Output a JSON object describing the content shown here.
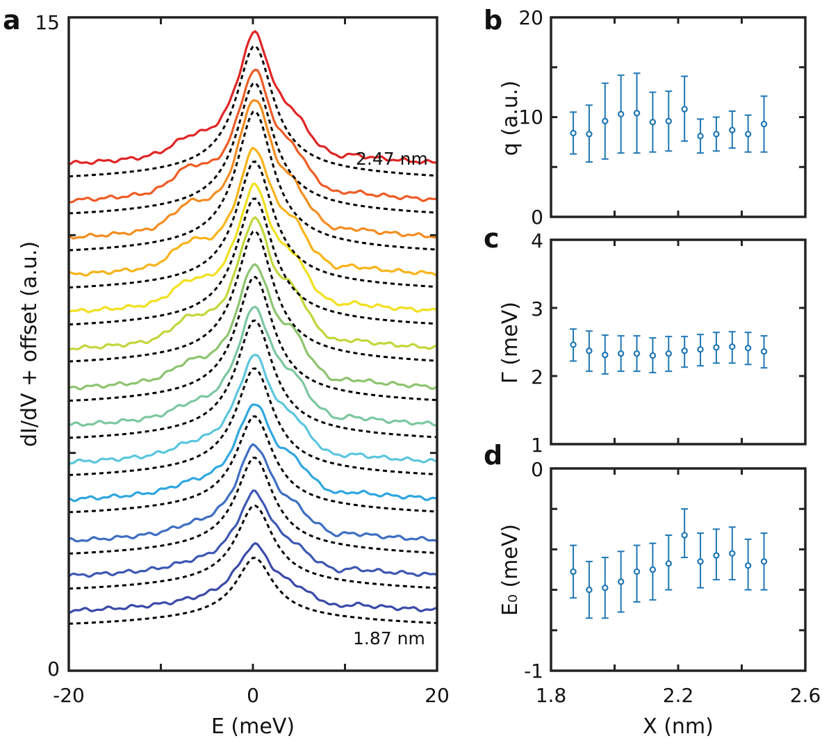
{
  "chart_data": [
    {
      "panel": "a",
      "type": "line",
      "xlabel": "E (meV)",
      "ylabel": "dI/dV + offset (a.u.)",
      "xlim": [
        -20,
        20
      ],
      "ylim": [
        0,
        15
      ],
      "x_ticks": [
        "-20",
        "0",
        "20"
      ],
      "y_ticks": [
        "0",
        "15"
      ],
      "annotations": [
        "2.47 nm",
        "1.87 nm"
      ],
      "fit_style": "black dashed",
      "series": [
        {
          "position_nm": 1.87,
          "color": "#3a4aa8",
          "offset": 1.3,
          "peak": 1.2,
          "bump": 0.02,
          "shoulder": 0.15
        },
        {
          "position_nm": 1.92,
          "color": "#3d57b3",
          "offset": 2.1,
          "peak": 1.6,
          "bump": 0.05,
          "shoulder": 0.2
        },
        {
          "position_nm": 1.97,
          "color": "#3d6ec2",
          "offset": 2.9,
          "peak": 1.9,
          "bump": 0.08,
          "shoulder": 0.25
        },
        {
          "position_nm": 2.02,
          "color": "#2fa6e0",
          "offset": 3.85,
          "peak": 1.9,
          "bump": 0.1,
          "shoulder": 0.35
        },
        {
          "position_nm": 2.07,
          "color": "#5bc6de",
          "offset": 4.7,
          "peak": 2.15,
          "bump": 0.12,
          "shoulder": 0.4
        },
        {
          "position_nm": 2.12,
          "color": "#7bc7a0",
          "offset": 5.55,
          "peak": 2.4,
          "bump": 0.15,
          "shoulder": 0.45
        },
        {
          "position_nm": 2.17,
          "color": "#8cc46e",
          "offset": 6.4,
          "peak": 2.55,
          "bump": 0.25,
          "shoulder": 0.55
        },
        {
          "position_nm": 2.22,
          "color": "#c2d63a",
          "offset": 7.3,
          "peak": 2.7,
          "bump": 0.35,
          "shoulder": 0.6
        },
        {
          "position_nm": 2.27,
          "color": "#f2e01e",
          "offset": 8.15,
          "peak": 2.6,
          "bump": 0.35,
          "shoulder": 0.55
        },
        {
          "position_nm": 2.32,
          "color": "#f8b318",
          "offset": 9.0,
          "peak": 2.6,
          "bump": 0.4,
          "shoulder": 0.5
        },
        {
          "position_nm": 2.37,
          "color": "#f48c20",
          "offset": 9.85,
          "peak": 2.9,
          "bump": 0.4,
          "shoulder": 0.45
        },
        {
          "position_nm": 2.42,
          "color": "#ee5b24",
          "offset": 10.7,
          "peak": 2.7,
          "bump": 0.4,
          "shoulder": 0.45
        },
        {
          "position_nm": 2.47,
          "color": "#e02424",
          "offset": 11.55,
          "peak": 2.7,
          "bump": 0.25,
          "shoulder": 0.4
        }
      ]
    },
    {
      "panel": "b",
      "type": "scatter",
      "xlabel": "",
      "ylabel": "q (a.u.)",
      "xlim": [
        1.8,
        2.6
      ],
      "ylim": [
        0,
        20
      ],
      "y_ticks": [
        "0",
        "10",
        "20"
      ],
      "x": [
        1.87,
        1.92,
        1.97,
        2.02,
        2.07,
        2.12,
        2.17,
        2.22,
        2.27,
        2.32,
        2.37,
        2.42,
        2.47
      ],
      "y": [
        8.4,
        8.3,
        9.6,
        10.3,
        10.4,
        9.5,
        9.6,
        10.8,
        8.1,
        8.3,
        8.7,
        8.3,
        9.3
      ],
      "yerr_low": [
        6.3,
        5.5,
        5.8,
        6.4,
        6.4,
        6.5,
        6.6,
        7.6,
        6.4,
        6.6,
        6.9,
        6.5,
        6.5
      ],
      "yerr_high": [
        10.5,
        11.2,
        13.4,
        14.2,
        14.4,
        12.5,
        12.6,
        14.1,
        9.8,
        10.0,
        10.6,
        10.2,
        12.1
      ]
    },
    {
      "panel": "c",
      "type": "scatter",
      "xlabel": "",
      "ylabel": "Γ (meV)",
      "xlim": [
        1.8,
        2.6
      ],
      "ylim": [
        1,
        4
      ],
      "y_ticks": [
        "1",
        "2",
        "3",
        "4"
      ],
      "x": [
        1.87,
        1.92,
        1.97,
        2.02,
        2.07,
        2.12,
        2.17,
        2.22,
        2.27,
        2.32,
        2.37,
        2.42,
        2.47
      ],
      "y": [
        2.46,
        2.37,
        2.31,
        2.33,
        2.33,
        2.3,
        2.33,
        2.37,
        2.39,
        2.42,
        2.43,
        2.41,
        2.36
      ],
      "yerr_low": [
        2.22,
        2.07,
        2.03,
        2.07,
        2.07,
        2.05,
        2.07,
        2.13,
        2.15,
        2.19,
        2.19,
        2.17,
        2.12
      ],
      "yerr_high": [
        2.69,
        2.66,
        2.6,
        2.59,
        2.59,
        2.56,
        2.58,
        2.58,
        2.61,
        2.64,
        2.65,
        2.64,
        2.59
      ]
    },
    {
      "panel": "d",
      "type": "scatter",
      "xlabel": "X (nm)",
      "ylabel": "E₀ (meV)",
      "xlim": [
        1.8,
        2.6
      ],
      "ylim": [
        -1,
        0
      ],
      "y_ticks": [
        "0",
        "-1"
      ],
      "x_ticks": [
        "1.8",
        "2.2",
        "2.6"
      ],
      "x": [
        1.87,
        1.92,
        1.97,
        2.02,
        2.07,
        2.12,
        2.17,
        2.22,
        2.27,
        2.32,
        2.37,
        2.42,
        2.47
      ],
      "y": [
        -0.51,
        -0.6,
        -0.59,
        -0.56,
        -0.51,
        -0.5,
        -0.47,
        -0.33,
        -0.46,
        -0.43,
        -0.42,
        -0.48,
        -0.46
      ],
      "yerr_low": [
        -0.64,
        -0.74,
        -0.74,
        -0.71,
        -0.66,
        -0.65,
        -0.6,
        -0.44,
        -0.59,
        -0.55,
        -0.55,
        -0.6,
        -0.6
      ],
      "yerr_high": [
        -0.38,
        -0.46,
        -0.44,
        -0.41,
        -0.38,
        -0.37,
        -0.33,
        -0.2,
        -0.32,
        -0.3,
        -0.29,
        -0.35,
        -0.32
      ]
    }
  ],
  "panel_letters": {
    "a": "a",
    "b": "b",
    "c": "c",
    "d": "d"
  },
  "colors": {
    "marker": "#1f77b4",
    "fit": "#000000",
    "axis": "#222222"
  }
}
